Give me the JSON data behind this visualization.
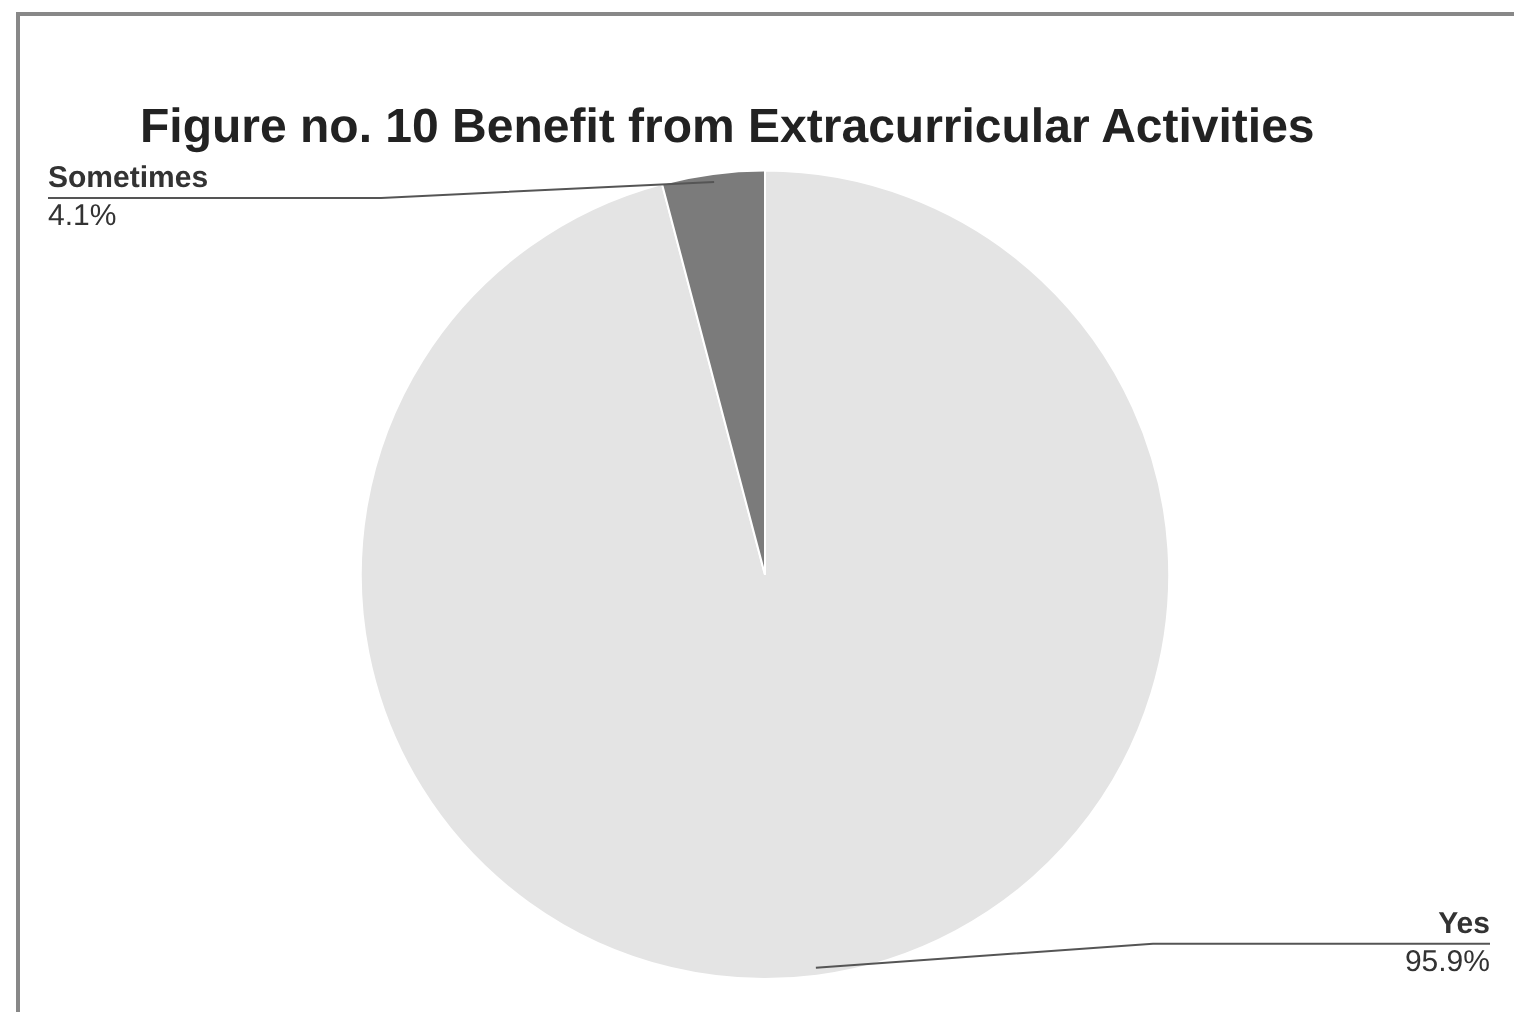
{
  "chart_data": {
    "type": "pie",
    "title": "Figure no. 10 Benefit from Extracurricular Activities",
    "categories": [
      "Yes",
      "Sometimes"
    ],
    "values": [
      95.9,
      4.1
    ],
    "colors": [
      "#e4e4e4",
      "#7b7b7b"
    ],
    "value_labels": [
      "95.9%",
      "4.1%"
    ],
    "legend": false
  }
}
